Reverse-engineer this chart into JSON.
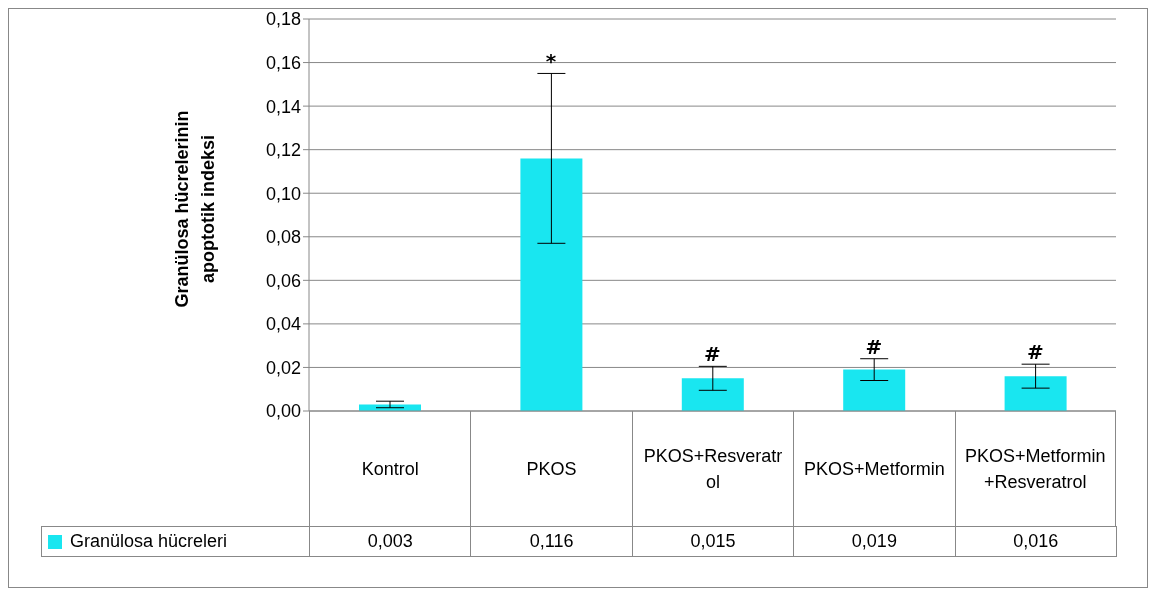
{
  "chart_data": {
    "type": "bar",
    "ylabel": "Granülosa hücrelerinin apoptotik indeksi",
    "categories": [
      "Kontrol",
      "PKOS",
      "PKOS+Resveratrol",
      "PKOS+Metformin",
      "PKOS+Metformin+Resveratrol"
    ],
    "series": [
      {
        "name": "Granülosa hücreleri",
        "color": "#19e6f0",
        "values": [
          0.003,
          0.116,
          0.015,
          0.019,
          0.016
        ],
        "errors": [
          0.0015,
          0.039,
          0.0055,
          0.005,
          0.0055
        ]
      }
    ],
    "ylim": [
      0,
      0.18
    ],
    "yticks": [
      {
        "value": 0,
        "label": "0,00"
      },
      {
        "value": 0.02,
        "label": "0,02"
      },
      {
        "value": 0.04,
        "label": "0,04"
      },
      {
        "value": 0.06,
        "label": "0,06"
      },
      {
        "value": 0.08,
        "label": "0,08"
      },
      {
        "value": 0.1,
        "label": "0,10"
      },
      {
        "value": 0.12,
        "label": "0,12"
      },
      {
        "value": 0.14,
        "label": "0,14"
      },
      {
        "value": 0.16,
        "label": "0,16"
      },
      {
        "value": 0.18,
        "label": "0,18"
      }
    ],
    "annotations": [
      {
        "text": "*",
        "x": "PKOS",
        "y": 0.155
      },
      {
        "text": "#",
        "x": "PKOS+Resveratrol",
        "y": 0.0205
      },
      {
        "text": "#",
        "x": "PKOS+Metformin",
        "y": 0.024
      },
      {
        "text": "#",
        "x": "PKOS+Metformin+Resveratrol",
        "y": 0.0215
      }
    ],
    "value_labels": [
      "0,003",
      "0,116",
      "0,015",
      "0,019",
      "0,016"
    ],
    "grid": "y",
    "legend": "bottom left"
  }
}
